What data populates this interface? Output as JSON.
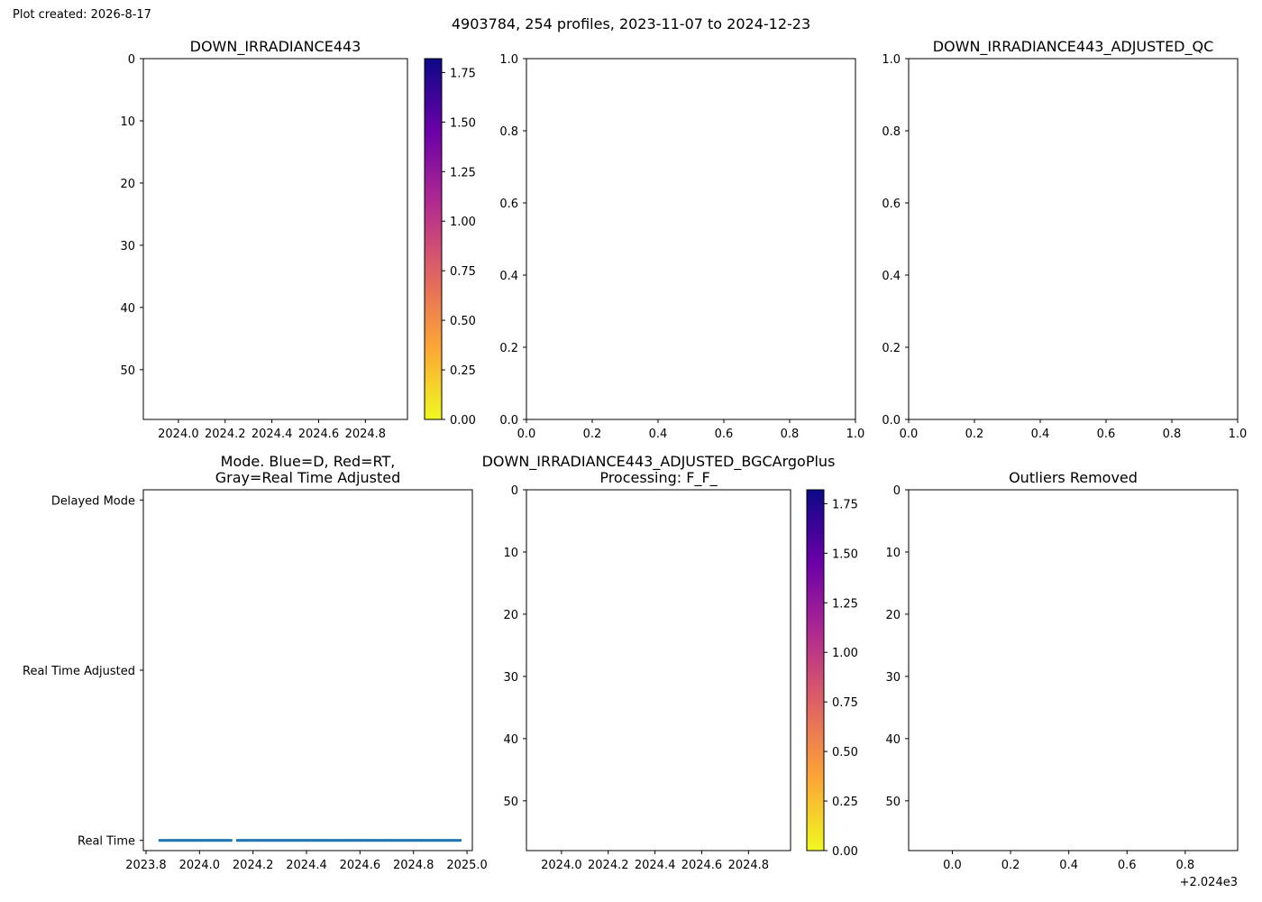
{
  "figure": {
    "created_label": "Plot created: 2026-8-17",
    "suptitle": "4903784, 254 profiles, 2023-11-07 to 2024-12-23"
  },
  "colormap": {
    "name": "plasma_r",
    "stops": [
      "#f0f921",
      "#fca636",
      "#e16462",
      "#b12a90",
      "#6a00a8",
      "#0d0887"
    ]
  },
  "chart_data": [
    {
      "id": "down-irradiance",
      "type": "heatmap",
      "title": "DOWN_IRRADIANCE443",
      "xlim": [
        2023.85,
        2024.98
      ],
      "x_ticks": [
        2024.0,
        2024.2,
        2024.4,
        2024.6,
        2024.8
      ],
      "x_tick_labels": [
        "2024.0",
        "2024.2",
        "2024.4",
        "2024.6",
        "2024.8"
      ],
      "ylim": [
        0,
        58
      ],
      "y_inverted": true,
      "y_ticks": [
        0,
        10,
        20,
        30,
        40,
        50
      ],
      "y_tick_labels": [
        "0",
        "10",
        "20",
        "30",
        "40",
        "50"
      ],
      "colorbar": {
        "range": [
          0,
          1.82
        ],
        "ticks": [
          0,
          0.25,
          0.5,
          0.75,
          1.0,
          1.25,
          1.5,
          1.75
        ],
        "tick_labels": [
          "0.00",
          "0.25",
          "0.50",
          "0.75",
          "1.00",
          "1.25",
          "1.50",
          "1.75"
        ]
      }
    },
    {
      "id": "empty-axes",
      "type": "scatter",
      "title": "",
      "xlim": [
        0,
        1
      ],
      "x_ticks": [
        0,
        0.2,
        0.4,
        0.6,
        0.8,
        1.0
      ],
      "x_tick_labels": [
        "0.0",
        "0.2",
        "0.4",
        "0.6",
        "0.8",
        "1.0"
      ],
      "ylim": [
        0,
        1
      ],
      "y_inverted": false,
      "y_ticks": [
        0,
        0.2,
        0.4,
        0.6,
        0.8,
        1.0
      ],
      "y_tick_labels": [
        "0.0",
        "0.2",
        "0.4",
        "0.6",
        "0.8",
        "1.0"
      ]
    },
    {
      "id": "adjusted-qc",
      "type": "scatter",
      "title": "DOWN_IRRADIANCE443_ADJUSTED_QC",
      "xlim": [
        0,
        1
      ],
      "x_ticks": [
        0,
        0.2,
        0.4,
        0.6,
        0.8,
        1.0
      ],
      "x_tick_labels": [
        "0.0",
        "0.2",
        "0.4",
        "0.6",
        "0.8",
        "1.0"
      ],
      "ylim": [
        0,
        1
      ],
      "y_inverted": false,
      "y_ticks": [
        0,
        0.2,
        0.4,
        0.6,
        0.8,
        1.0
      ],
      "y_tick_labels": [
        "0.0",
        "0.2",
        "0.4",
        "0.6",
        "0.8",
        "1.0"
      ]
    },
    {
      "id": "mode",
      "type": "scatter",
      "title": "Mode. Blue=D, Red=RT,\nGray=Real Time Adjusted",
      "xlim": [
        2023.79,
        2025.02
      ],
      "x_ticks": [
        2023.8,
        2024.0,
        2024.2,
        2024.4,
        2024.6,
        2024.8,
        2025.0
      ],
      "x_tick_labels": [
        "2023.8",
        "2024.0",
        "2024.2",
        "2024.4",
        "2024.6",
        "2024.8",
        "2025.0"
      ],
      "ylim": [
        -0.06,
        2.06
      ],
      "y_inverted": false,
      "y_ticks": [
        0,
        1,
        2
      ],
      "y_tick_labels": [
        "Real Time",
        "Real Time Adjusted",
        "Delayed Mode"
      ],
      "series": [
        {
          "color": "#1f77b4",
          "segments": [
            {
              "x_start": 2023.85,
              "x_end": 2024.12,
              "y": 0
            },
            {
              "x_start": 2024.14,
              "x_end": 2024.98,
              "y": 0
            }
          ],
          "marker_spacing": 0.0045
        }
      ]
    },
    {
      "id": "bgcargoplus",
      "type": "heatmap",
      "title": "DOWN_IRRADIANCE443_ADJUSTED_BGCArgoPlus\nProcessing: F_F_",
      "xlim": [
        2023.85,
        2024.98
      ],
      "x_ticks": [
        2024.0,
        2024.2,
        2024.4,
        2024.6,
        2024.8
      ],
      "x_tick_labels": [
        "2024.0",
        "2024.2",
        "2024.4",
        "2024.6",
        "2024.8"
      ],
      "ylim": [
        0,
        58
      ],
      "y_inverted": true,
      "y_ticks": [
        0,
        10,
        20,
        30,
        40,
        50
      ],
      "y_tick_labels": [
        "0",
        "10",
        "20",
        "30",
        "40",
        "50"
      ],
      "colorbar": {
        "range": [
          0,
          1.82
        ],
        "ticks": [
          0,
          0.25,
          0.5,
          0.75,
          1.0,
          1.25,
          1.5,
          1.75
        ],
        "tick_labels": [
          "0.00",
          "0.25",
          "0.50",
          "0.75",
          "1.00",
          "1.25",
          "1.50",
          "1.75"
        ]
      }
    },
    {
      "id": "outliers",
      "type": "scatter",
      "title": "Outliers Removed",
      "xlim": [
        -0.15,
        0.98
      ],
      "x_ticks": [
        0,
        0.2,
        0.4,
        0.6,
        0.8
      ],
      "x_tick_labels": [
        "0.0",
        "0.2",
        "0.4",
        "0.6",
        "0.8"
      ],
      "x_offset_label": "+2.024e3",
      "ylim": [
        0,
        58
      ],
      "y_inverted": true,
      "y_ticks": [
        0,
        10,
        20,
        30,
        40,
        50
      ],
      "y_tick_labels": [
        "0",
        "10",
        "20",
        "30",
        "40",
        "50"
      ]
    }
  ]
}
